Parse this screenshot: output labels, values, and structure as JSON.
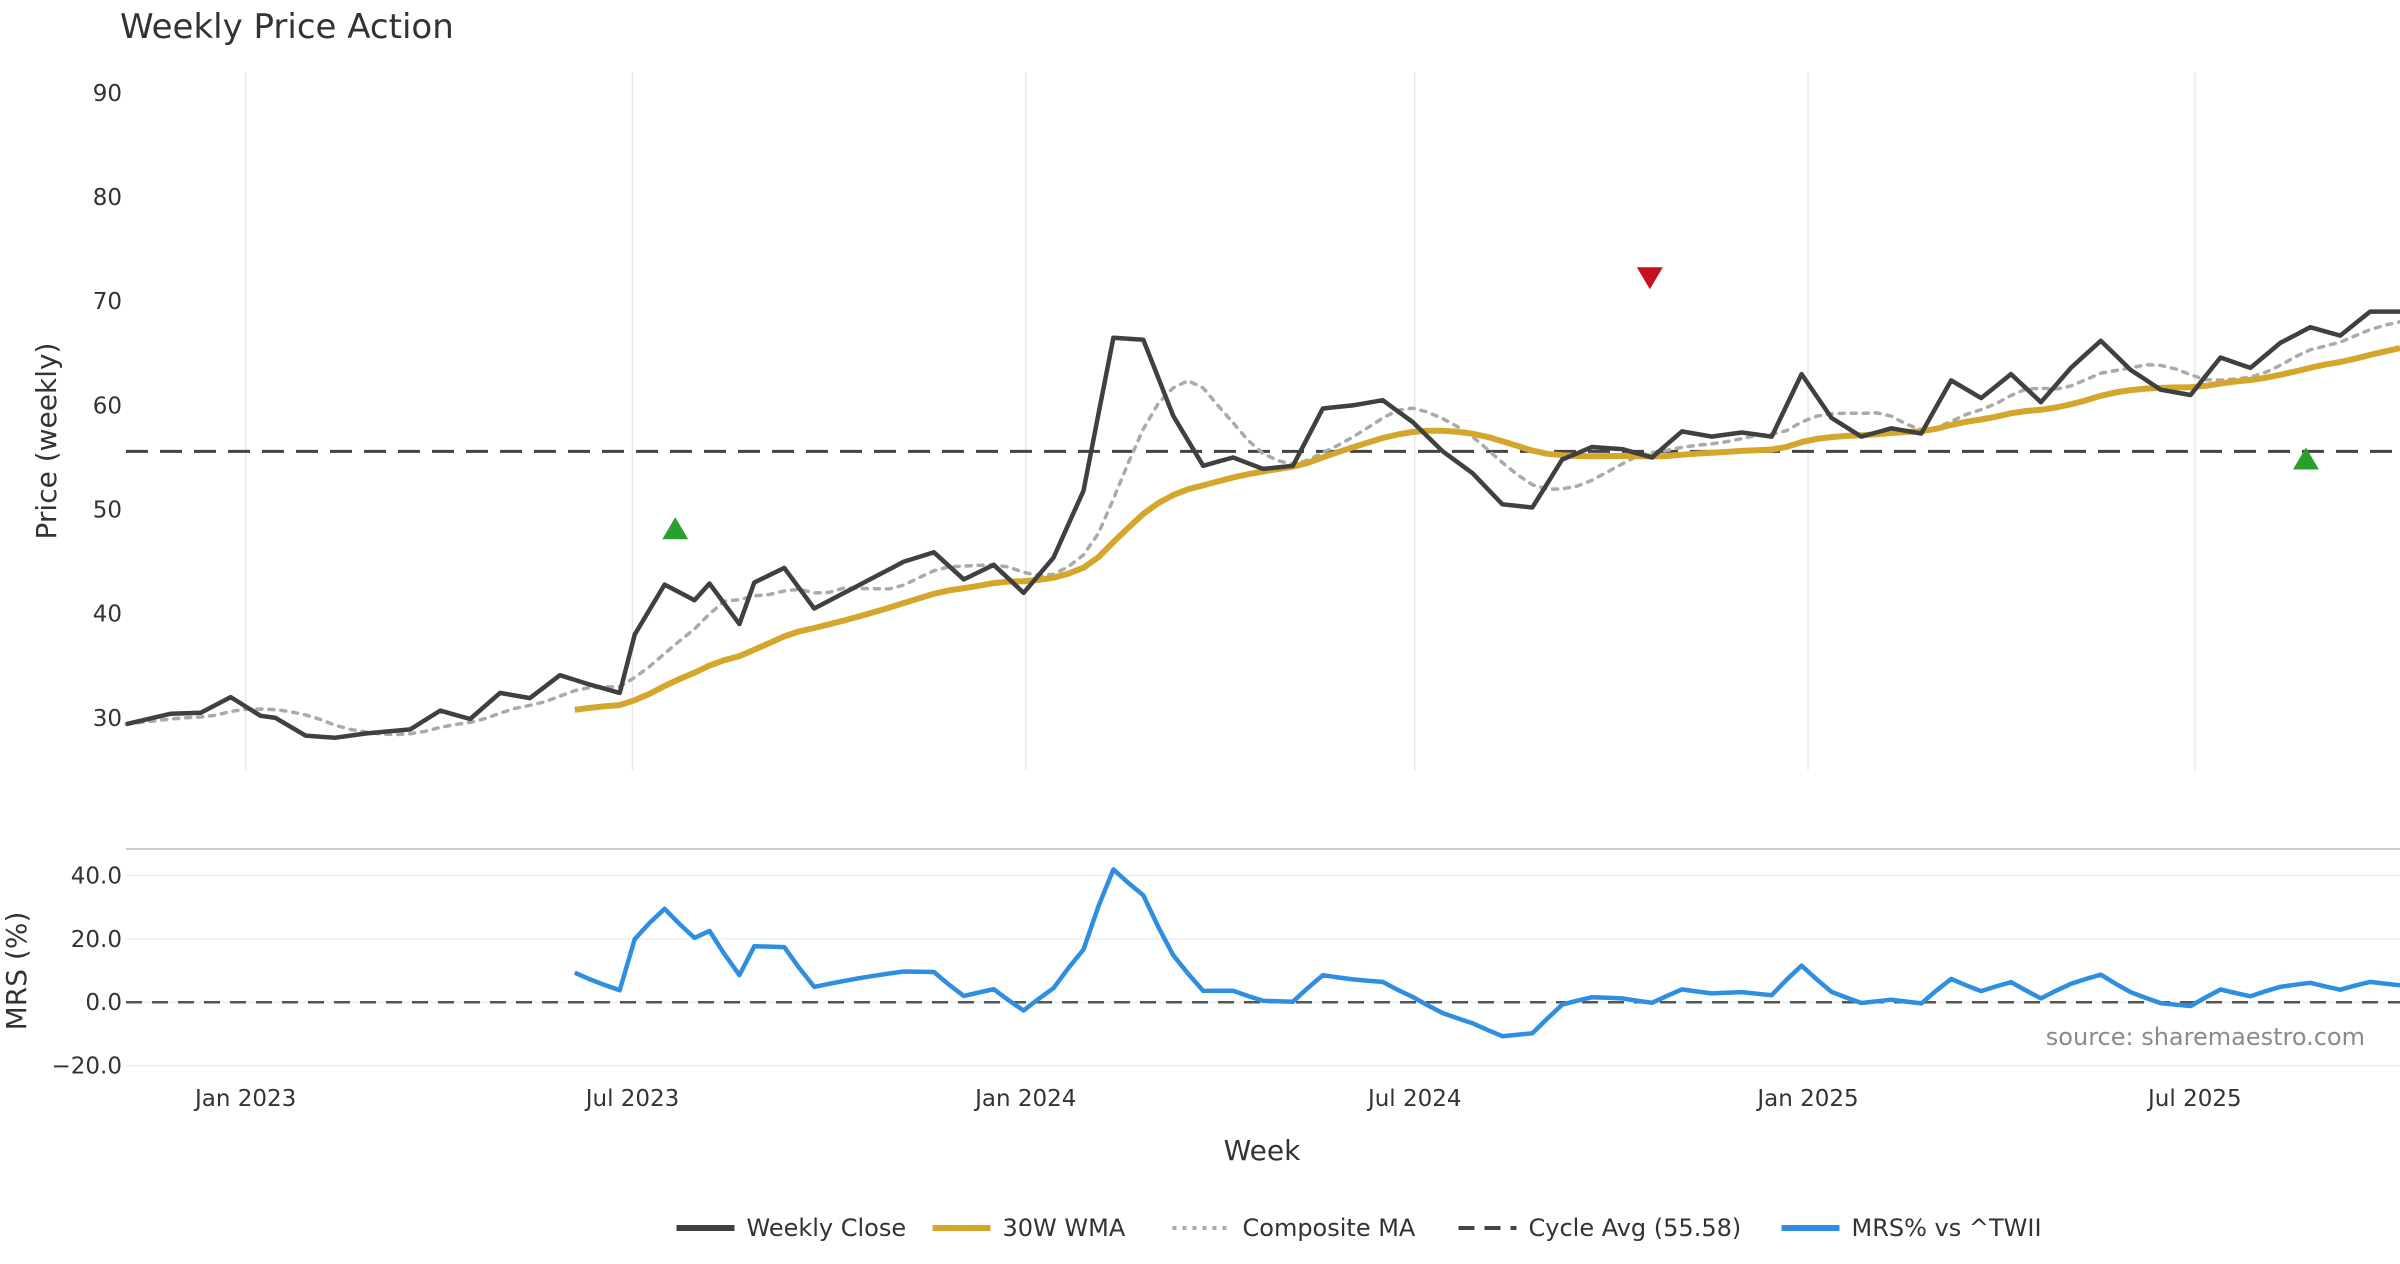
{
  "chart_data": {
    "type": "line",
    "title": "Weekly Price Action",
    "xlabel": "Week",
    "x_ticks": [
      {
        "date": "2023-01-01",
        "label": "Jan 2023"
      },
      {
        "date": "2023-07-01",
        "label": "Jul 2023"
      },
      {
        "date": "2024-01-01",
        "label": "Jan 2024"
      },
      {
        "date": "2024-07-01",
        "label": "Jul 2024"
      },
      {
        "date": "2025-01-01",
        "label": "Jan 2025"
      },
      {
        "date": "2025-07-01",
        "label": "Jul 2025"
      }
    ],
    "x_range": [
      "2022-11-06",
      "2025-10-05"
    ],
    "price_panel": {
      "ylabel": "Price (weekly)",
      "ylim": [
        25,
        92
      ],
      "y_ticks": [
        30,
        40,
        50,
        60,
        70,
        80,
        90
      ],
      "cycle_avg": 55.58,
      "series": [
        {
          "name": "Weekly Close",
          "color": "#404040",
          "style": "solid",
          "points": [
            [
              "2022-11-06",
              29.4
            ],
            [
              "2022-11-27",
              30.4
            ],
            [
              "2022-12-11",
              30.5
            ],
            [
              "2022-12-25",
              32.0
            ],
            [
              "2023-01-08",
              30.2
            ],
            [
              "2023-01-15",
              30.0
            ],
            [
              "2023-01-29",
              28.3
            ],
            [
              "2023-02-12",
              28.1
            ],
            [
              "2023-02-26",
              28.5
            ],
            [
              "2023-03-19",
              28.9
            ],
            [
              "2023-04-02",
              30.7
            ],
            [
              "2023-04-16",
              29.9
            ],
            [
              "2023-04-30",
              32.4
            ],
            [
              "2023-05-14",
              31.9
            ],
            [
              "2023-05-28",
              34.1
            ],
            [
              "2023-06-11",
              33.2
            ],
            [
              "2023-06-25",
              32.4
            ],
            [
              "2023-07-02",
              38.0
            ],
            [
              "2023-07-16",
              42.8
            ],
            [
              "2023-07-30",
              41.3
            ],
            [
              "2023-08-06",
              42.9
            ],
            [
              "2023-08-20",
              39.0
            ],
            [
              "2023-08-27",
              43.0
            ],
            [
              "2023-09-10",
              44.4
            ],
            [
              "2023-09-24",
              40.5
            ],
            [
              "2023-10-08",
              42.0
            ],
            [
              "2023-10-22",
              43.5
            ],
            [
              "2023-11-05",
              45.0
            ],
            [
              "2023-11-19",
              45.9
            ],
            [
              "2023-12-03",
              43.3
            ],
            [
              "2023-12-17",
              44.7
            ],
            [
              "2023-12-31",
              42.0
            ],
            [
              "2024-01-14",
              45.4
            ],
            [
              "2024-01-28",
              51.8
            ],
            [
              "2024-02-11",
              66.5
            ],
            [
              "2024-02-25",
              66.3
            ],
            [
              "2024-03-10",
              59.0
            ],
            [
              "2024-03-24",
              54.2
            ],
            [
              "2024-04-07",
              55.0
            ],
            [
              "2024-04-21",
              53.9
            ],
            [
              "2024-05-05",
              54.2
            ],
            [
              "2024-05-19",
              59.7
            ],
            [
              "2024-06-02",
              60.0
            ],
            [
              "2024-06-16",
              60.5
            ],
            [
              "2024-06-30",
              58.4
            ],
            [
              "2024-07-14",
              55.6
            ],
            [
              "2024-07-28",
              53.5
            ],
            [
              "2024-08-11",
              50.5
            ],
            [
              "2024-08-25",
              50.2
            ],
            [
              "2024-09-08",
              54.8
            ],
            [
              "2024-09-22",
              56.0
            ],
            [
              "2024-10-06",
              55.8
            ],
            [
              "2024-10-20",
              55.0
            ],
            [
              "2024-11-03",
              57.5
            ],
            [
              "2024-11-17",
              57.0
            ],
            [
              "2024-12-01",
              57.4
            ],
            [
              "2024-12-15",
              57.0
            ],
            [
              "2024-12-29",
              63.0
            ],
            [
              "2025-01-12",
              58.8
            ],
            [
              "2025-01-26",
              57.0
            ],
            [
              "2025-02-09",
              57.8
            ],
            [
              "2025-02-23",
              57.3
            ],
            [
              "2025-03-09",
              62.4
            ],
            [
              "2025-03-23",
              60.7
            ],
            [
              "2025-04-06",
              63.0
            ],
            [
              "2025-04-20",
              60.3
            ],
            [
              "2025-05-04",
              63.6
            ],
            [
              "2025-05-18",
              66.2
            ],
            [
              "2025-06-01",
              63.4
            ],
            [
              "2025-06-15",
              61.5
            ],
            [
              "2025-06-29",
              61.0
            ],
            [
              "2025-07-13",
              64.6
            ],
            [
              "2025-07-27",
              63.6
            ],
            [
              "2025-08-10",
              66.0
            ],
            [
              "2025-08-24",
              67.5
            ],
            [
              "2025-09-07",
              66.7
            ],
            [
              "2025-09-21",
              69.0
            ]
          ]
        },
        {
          "name": "30W WMA",
          "color": "#d4a72c",
          "style": "solid",
          "points": []
        },
        {
          "name": "Composite MA",
          "color": "#aaaaaa",
          "style": "dotted",
          "points": []
        }
      ],
      "signals": [
        {
          "type": "buy",
          "date": "2023-07-21",
          "y": 48.2,
          "color": "#2aa02a"
        },
        {
          "type": "sell",
          "date": "2024-10-19",
          "y": 72.2,
          "color": "#c8101c"
        },
        {
          "type": "buy",
          "date": "2025-08-22",
          "y": 54.9,
          "color": "#2aa02a"
        }
      ]
    },
    "mrs_panel": {
      "ylabel": "MRS (%)",
      "ylim": [
        -22,
        48
      ],
      "y_ticks": [
        40.0,
        20.0,
        0.0,
        -20.0
      ],
      "y_tick_labels": [
        "40.0",
        "20.0",
        "0.0",
        "−20.0"
      ],
      "series": [
        {
          "name": "MRS% vs ^TWII",
          "color": "#2e8ee0",
          "style": "solid",
          "points": []
        }
      ]
    },
    "legend": {
      "placement": "bottom-center",
      "entries": [
        {
          "label": "Weekly Close",
          "color": "#404040",
          "style": "solid"
        },
        {
          "label": "30W WMA",
          "color": "#d4a72c",
          "style": "solid"
        },
        {
          "label": "Composite MA",
          "color": "#aaaaaa",
          "style": "dotted"
        },
        {
          "label": "Cycle Avg (55.58)",
          "color": "#444444",
          "style": "dashed"
        },
        {
          "label": "MRS% vs ^TWII",
          "color": "#2e8ee0",
          "style": "solid"
        }
      ]
    },
    "watermark": "source: sharemaestro.com"
  }
}
